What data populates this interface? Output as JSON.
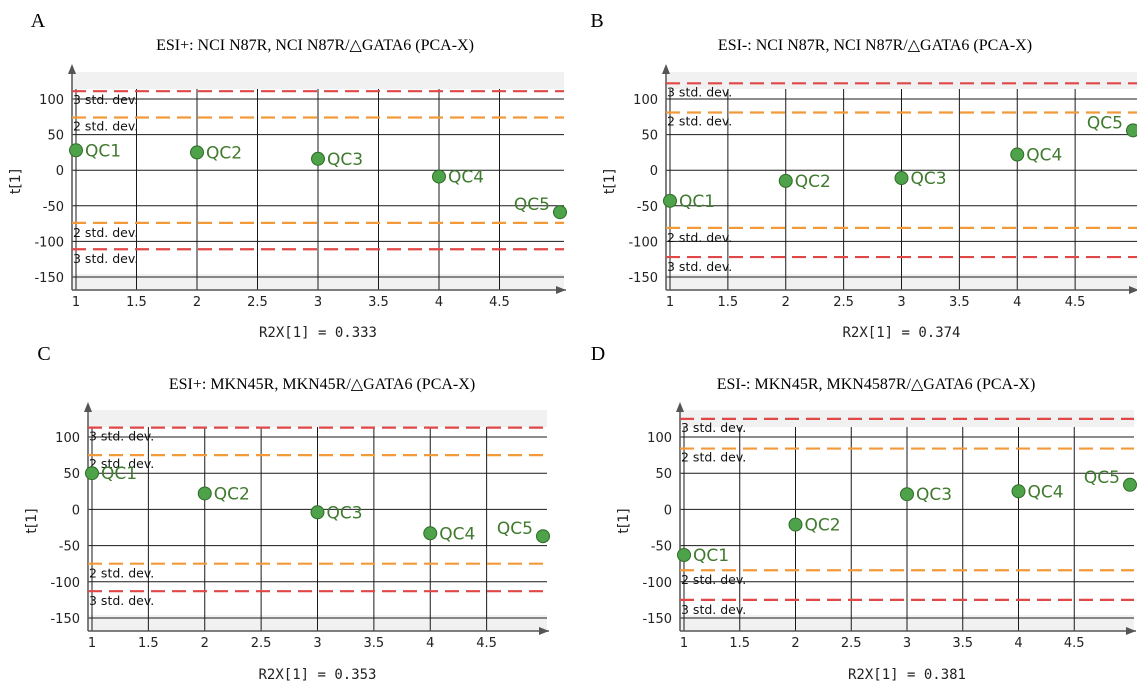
{
  "colors": {
    "point_fill": "#4ea24a",
    "point_stroke": "#2e6b27",
    "point_label": "#3f7a2e",
    "limit_3sd": "#e04848",
    "limit_2sd": "#f29a3a",
    "plot_background": "#f1f1f1",
    "grid": "#1a1a1a"
  },
  "limit_labels": {
    "sd3": "3 std. dev.",
    "sd2": "2 std. dev."
  },
  "chart_data": [
    {
      "type": "scatter",
      "panel": "A",
      "title": "ESI+: NCI N87R, NCI N87R/△GATA6 (PCA-X)",
      "xlabel": "R2X[1] = 0.333",
      "ylabel": "t[1]",
      "xlim": [
        1,
        5
      ],
      "ylim": [
        -150,
        150
      ],
      "xticks": [
        "1",
        "1.5",
        "2",
        "2.5",
        "3",
        "3.5",
        "4",
        "4.5"
      ],
      "yticks": [
        "100",
        "50",
        "0",
        "-50",
        "-100",
        "-150"
      ],
      "grid": true,
      "x": [
        1,
        2,
        3,
        4,
        5
      ],
      "y": [
        28,
        25,
        16,
        -9,
        -59
      ],
      "labels": [
        "QC1",
        "QC2",
        "QC3",
        "QC4",
        "QC5"
      ],
      "limits": {
        "sd3": [
          111,
          -111
        ],
        "sd2": [
          74,
          -74
        ]
      }
    },
    {
      "type": "scatter",
      "panel": "B",
      "title": "ESI-: NCI N87R, NCI N87R/△GATA6 (PCA-X)",
      "xlabel": "R2X[1] = 0.374",
      "ylabel": "t[1]",
      "xlim": [
        1,
        5
      ],
      "ylim": [
        -150,
        150
      ],
      "xticks": [
        "1",
        "1.5",
        "2",
        "2.5",
        "3",
        "3.5",
        "4",
        "4.5"
      ],
      "yticks": [
        "100",
        "50",
        "0",
        "-50",
        "-100",
        "-150"
      ],
      "grid": true,
      "x": [
        1,
        2,
        3,
        4,
        5
      ],
      "y": [
        -43,
        -15,
        -11,
        22,
        56
      ],
      "labels": [
        "QC1",
        "QC2",
        "QC3",
        "QC4",
        "QC5"
      ],
      "limits": {
        "sd3": [
          122,
          -122
        ],
        "sd2": [
          81,
          -81
        ]
      }
    },
    {
      "type": "scatter",
      "panel": "C",
      "title": "ESI+: MKN45R, MKN45R/△GATA6 (PCA-X)",
      "xlabel": "R2X[1] = 0.353",
      "ylabel": "t[1]",
      "xlim": [
        1,
        5
      ],
      "ylim": [
        -150,
        150
      ],
      "xticks": [
        "1",
        "1.5",
        "2",
        "2.5",
        "3",
        "3.5",
        "4",
        "4.5"
      ],
      "yticks": [
        "100",
        "50",
        "0",
        "-50",
        "-100",
        "-150"
      ],
      "grid": true,
      "x": [
        1,
        2,
        3,
        4,
        5
      ],
      "y": [
        50,
        22,
        -4,
        -33,
        -37
      ],
      "labels": [
        "QC1",
        "QC2",
        "QC3",
        "QC4",
        "QC5"
      ],
      "limits": {
        "sd3": [
          113,
          -113
        ],
        "sd2": [
          75,
          -75
        ]
      }
    },
    {
      "type": "scatter",
      "panel": "D",
      "title": "ESI-: MKN45R, MKN4587R/△GATA6 (PCA-X)",
      "xlabel": "R2X[1] = 0.381",
      "ylabel": "t[1]",
      "xlim": [
        1,
        5
      ],
      "ylim": [
        -150,
        150
      ],
      "xticks": [
        "1",
        "1.5",
        "2",
        "2.5",
        "3",
        "3.5",
        "4",
        "4.5"
      ],
      "yticks": [
        "100",
        "50",
        "0",
        "-50",
        "-100",
        "-150"
      ],
      "grid": true,
      "x": [
        1,
        2,
        3,
        4,
        5
      ],
      "y": [
        -63,
        -21,
        21,
        25,
        34
      ],
      "labels": [
        "QC1",
        "QC2",
        "QC3",
        "QC4",
        "QC5"
      ],
      "limits": {
        "sd3": [
          125,
          -125
        ],
        "sd2": [
          84,
          -84
        ]
      }
    }
  ]
}
